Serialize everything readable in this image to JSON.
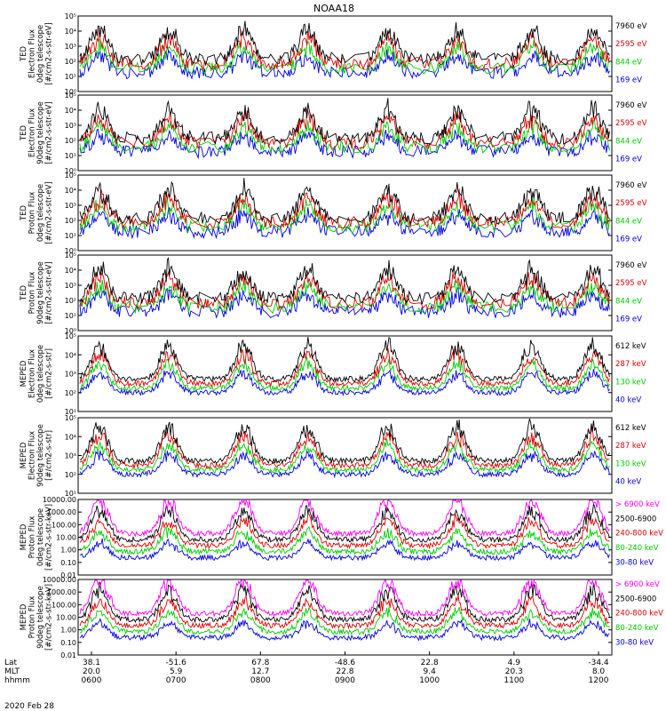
{
  "chart_data": {
    "type": "line",
    "title": "NOAA18",
    "date_label": "2020 Feb 28",
    "x_axis": {
      "rows": [
        {
          "name": "Lat",
          "values": [
            "38.1",
            "-51.6",
            "67.8",
            "-48.6",
            "22.8",
            "4.9",
            "-34.4"
          ]
        },
        {
          "name": "MLT",
          "values": [
            "20.0",
            "5.9",
            "12.7",
            "22.8",
            "9.4",
            "20.3",
            "8.0"
          ]
        },
        {
          "name": "hhmm",
          "values": [
            "0600",
            "0700",
            "0800",
            "0900",
            "1000",
            "1100",
            "1200"
          ]
        }
      ]
    },
    "panels": [
      {
        "ylabel": [
          "TED",
          "Electron Flux",
          "0deg telescope",
          "[#/cm2-s-str-eV]"
        ],
        "yticks": [
          "10⁰",
          "10¹",
          "10²",
          "10³",
          "10⁴",
          "10⁵"
        ],
        "log_min": 0,
        "log_max": 5,
        "legend": [
          {
            "text": "7960 eV",
            "color": "#000000"
          },
          {
            "text": "2595 eV",
            "color": "#e00000"
          },
          {
            "text": "844 eV",
            "color": "#00cc00"
          },
          {
            "text": "169 eV",
            "color": "#0000e0"
          }
        ]
      },
      {
        "ylabel": [
          "TED",
          "Electron Flux",
          "90deg telescope",
          "[#/cm2-s-str-eV]"
        ],
        "yticks": [
          "10⁰",
          "10¹",
          "10²",
          "10³",
          "10⁴",
          "10⁵"
        ],
        "log_min": 0,
        "log_max": 5,
        "legend": [
          {
            "text": "7960 eV",
            "color": "#000000"
          },
          {
            "text": "2595 eV",
            "color": "#e00000"
          },
          {
            "text": "844 eV",
            "color": "#00cc00"
          },
          {
            "text": "169 eV",
            "color": "#0000e0"
          }
        ]
      },
      {
        "ylabel": [
          "TED",
          "Proton Flux",
          "0deg telescope",
          "[#/cm2-s-str-eV]"
        ],
        "yticks": [
          "10⁰",
          "10¹",
          "10²",
          "10³",
          "10⁴",
          "10⁵"
        ],
        "log_min": 0,
        "log_max": 5,
        "legend": [
          {
            "text": "7960 eV",
            "color": "#000000"
          },
          {
            "text": "2595 eV",
            "color": "#e00000"
          },
          {
            "text": "844 eV",
            "color": "#00cc00"
          },
          {
            "text": "169 eV",
            "color": "#0000e0"
          }
        ]
      },
      {
        "ylabel": [
          "TED",
          "Proton Flux",
          "90deg telescope",
          "[#/cm2-s-str-eV]"
        ],
        "yticks": [
          "10⁰",
          "10¹",
          "10²",
          "10³",
          "10⁴",
          "10⁵"
        ],
        "log_min": 0,
        "log_max": 5,
        "legend": [
          {
            "text": "7960 eV",
            "color": "#000000"
          },
          {
            "text": "2595 eV",
            "color": "#e00000"
          },
          {
            "text": "844 eV",
            "color": "#00cc00"
          },
          {
            "text": "169 eV",
            "color": "#0000e0"
          }
        ]
      },
      {
        "ylabel": [
          "MEPED",
          "Electron Flux",
          "0deg telescope",
          "[#/cm2-s-str]"
        ],
        "yticks": [
          "10¹",
          "10²",
          "10³",
          "10⁴",
          "10⁵"
        ],
        "log_min": 1,
        "log_max": 5,
        "legend": [
          {
            "text": "612 keV",
            "color": "#000000"
          },
          {
            "text": "287 keV",
            "color": "#e00000"
          },
          {
            "text": "130 keV",
            "color": "#00cc00"
          },
          {
            "text": "40 keV",
            "color": "#0000e0"
          }
        ]
      },
      {
        "ylabel": [
          "MEPED",
          "Electron Flux",
          "90deg telescope",
          "[#/cm2-s-str]"
        ],
        "yticks": [
          "10¹",
          "10²",
          "10³",
          "10⁴",
          "10⁵"
        ],
        "log_min": 1,
        "log_max": 5,
        "legend": [
          {
            "text": "612 keV",
            "color": "#000000"
          },
          {
            "text": "287 keV",
            "color": "#e00000"
          },
          {
            "text": "130 keV",
            "color": "#00cc00"
          },
          {
            "text": "40 keV",
            "color": "#0000e0"
          }
        ]
      },
      {
        "ylabel": [
          "MEPED",
          "Proton Flux",
          "0deg telescope",
          "[#/cm2-s-str-keV]"
        ],
        "yticks": [
          "0.01",
          "0.10",
          "1.00",
          "10.00",
          "100.00",
          "1000.00",
          "10000.00"
        ],
        "log_min": -2,
        "log_max": 4,
        "legend": [
          {
            "text": "> 6900 keV",
            "color": "#ff00ff"
          },
          {
            "text": "2500-6900",
            "color": "#000000"
          },
          {
            "text": "240-800 keV",
            "color": "#e00000"
          },
          {
            "text": "80-240 keV",
            "color": "#00cc00"
          },
          {
            "text": "30-80 keV",
            "color": "#0000e0"
          }
        ]
      },
      {
        "ylabel": [
          "MEPED",
          "Proton Flux",
          "90deg telescope",
          "[#/cm2-s-str-keV]"
        ],
        "yticks": [
          "0.01",
          "0.10",
          "1.00",
          "10.00",
          "100.00",
          "1000.00",
          "10000.00"
        ],
        "log_min": -2,
        "log_max": 4,
        "legend": [
          {
            "text": "> 6900 keV",
            "color": "#ff00ff"
          },
          {
            "text": "2500-6900",
            "color": "#000000"
          },
          {
            "text": "240-800 keV",
            "color": "#e00000"
          },
          {
            "text": "80-240 keV",
            "color": "#00cc00"
          },
          {
            "text": "30-80 keV",
            "color": "#0000e0"
          }
        ]
      }
    ]
  }
}
